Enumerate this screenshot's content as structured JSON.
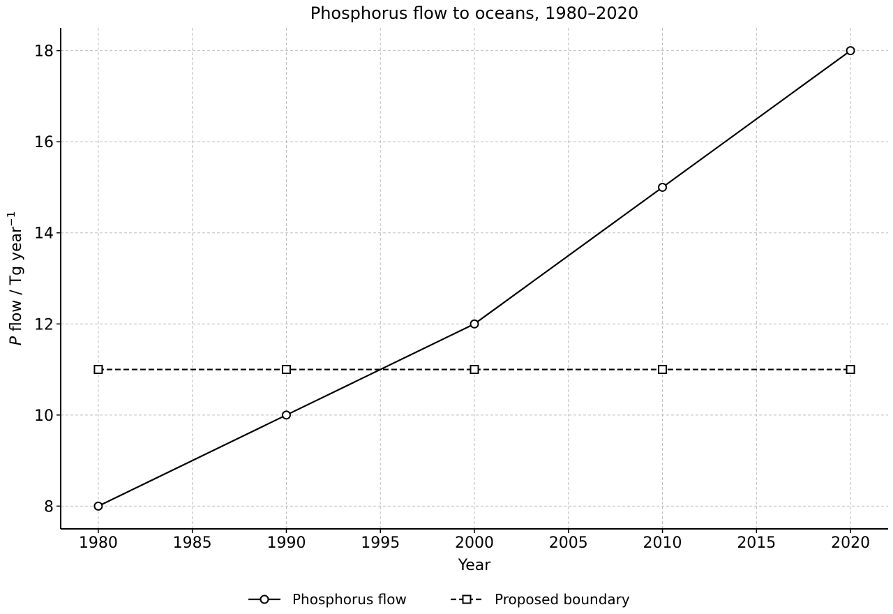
{
  "chart_data": {
    "type": "line",
    "title": "Phosphorus flow to oceans, 1980–2020",
    "xlabel": "Year",
    "ylabel_var": "P",
    "ylabel_text": " flow / Tg year",
    "ylabel_sup": "−1",
    "xlim": [
      1978,
      2022
    ],
    "ylim": [
      7.5,
      18.5
    ],
    "xticks": [
      1980,
      1985,
      1990,
      1995,
      2000,
      2005,
      2010,
      2015,
      2020
    ],
    "yticks": [
      8,
      10,
      12,
      14,
      16,
      18
    ],
    "grid": true,
    "legend_position": "bottom-center",
    "series": [
      {
        "name": "Phosphorus flow",
        "x": [
          1980,
          1990,
          2000,
          2010,
          2020
        ],
        "y": [
          8,
          10,
          12,
          15,
          18
        ],
        "marker": "circle",
        "line_style": "solid",
        "color": "#000000"
      },
      {
        "name": "Proposed boundary",
        "x": [
          1980,
          1990,
          2000,
          2010,
          2020
        ],
        "y": [
          11,
          11,
          11,
          11,
          11
        ],
        "marker": "square",
        "line_style": "dashed",
        "color": "#000000"
      }
    ]
  }
}
